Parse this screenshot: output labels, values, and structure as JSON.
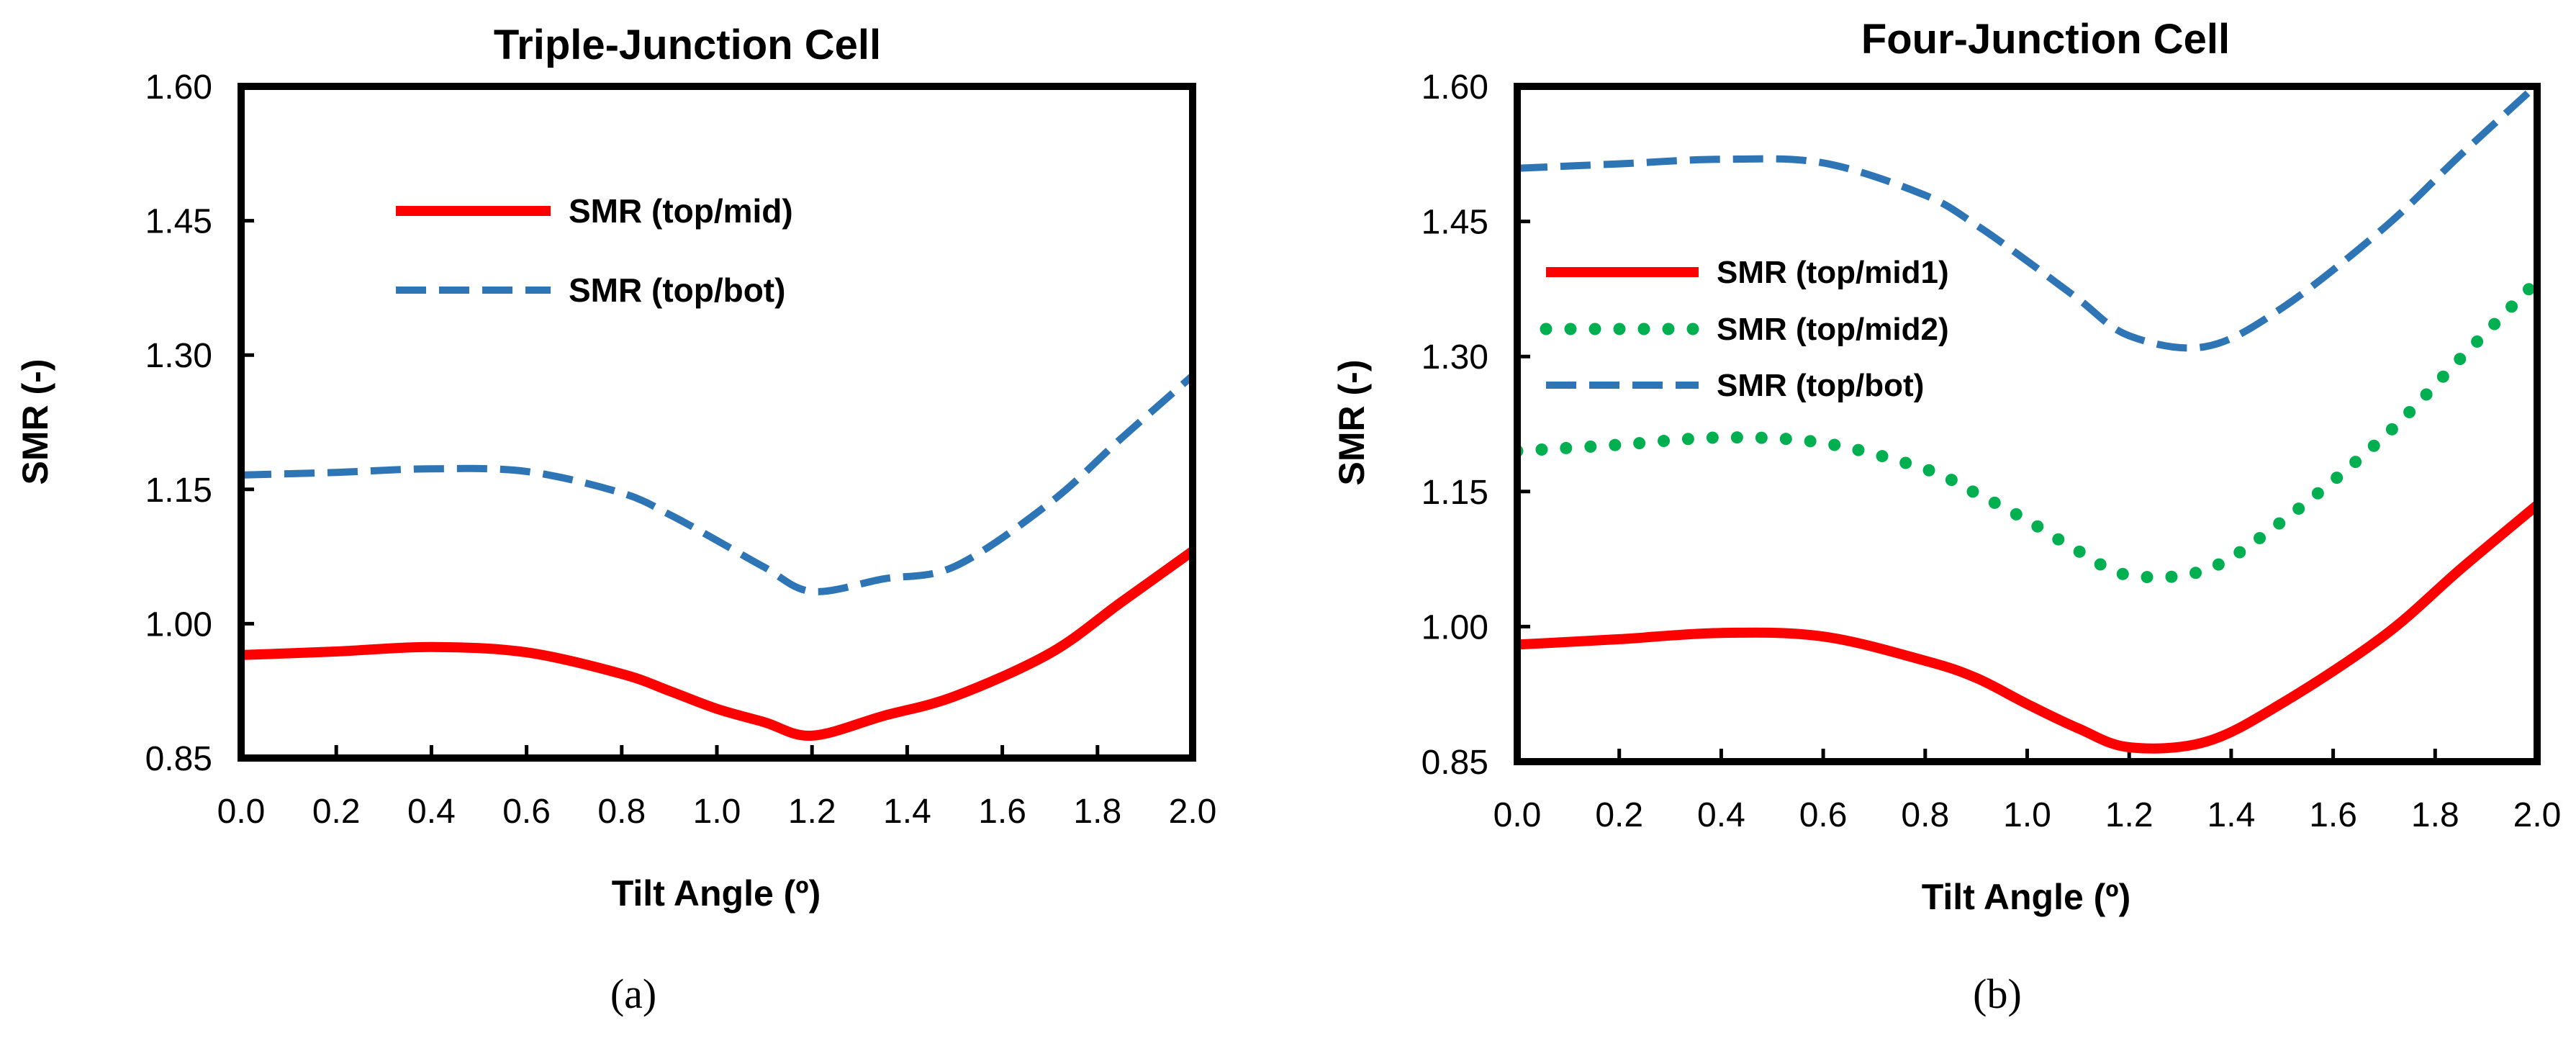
{
  "chart_data": [
    {
      "type": "line",
      "title": "Triple-Junction Cell",
      "xlabel": "Tilt Angle (º)",
      "ylabel": "SMR (-)",
      "caption": "(a)",
      "xlim": [
        0,
        2.0
      ],
      "ylim": [
        0.85,
        1.6
      ],
      "xticks": [
        "0.0",
        "0.2",
        "0.4",
        "0.6",
        "0.8",
        "1.0",
        "1.2",
        "1.4",
        "1.6",
        "1.8",
        "2.0"
      ],
      "yticks": [
        "0.85",
        "1.00",
        "1.15",
        "1.30",
        "1.45",
        "1.60"
      ],
      "series": [
        {
          "name": "SMR (top/mid)",
          "color": "#ff0000",
          "style": "solid",
          "x": [
            0.0,
            0.2,
            0.4,
            0.6,
            0.8,
            0.9,
            1.0,
            1.1,
            1.2,
            1.35,
            1.5,
            1.7,
            1.85,
            2.0
          ],
          "y": [
            0.965,
            0.969,
            0.974,
            0.968,
            0.944,
            0.925,
            0.905,
            0.89,
            0.875,
            0.897,
            0.919,
            0.967,
            1.024,
            1.081
          ]
        },
        {
          "name": "SMR (top/bot)",
          "color": "#2e75b6",
          "style": "dashed",
          "x": [
            0.0,
            0.2,
            0.4,
            0.6,
            0.8,
            0.9,
            1.0,
            1.1,
            1.2,
            1.35,
            1.5,
            1.7,
            1.85,
            2.0
          ],
          "y": [
            1.166,
            1.169,
            1.173,
            1.17,
            1.146,
            1.122,
            1.093,
            1.063,
            1.036,
            1.05,
            1.064,
            1.135,
            1.207,
            1.277
          ]
        }
      ]
    },
    {
      "type": "line",
      "title": "Four-Junction Cell",
      "xlabel": "Tilt Angle (º)",
      "ylabel": "SMR (-)",
      "caption": "(b)",
      "xlim": [
        0,
        2.0
      ],
      "ylim": [
        0.85,
        1.6
      ],
      "xticks": [
        "0.0",
        "0.2",
        "0.4",
        "0.6",
        "0.8",
        "1.0",
        "1.2",
        "1.4",
        "1.6",
        "1.8",
        "2.0"
      ],
      "yticks": [
        "0.85",
        "1.00",
        "1.15",
        "1.30",
        "1.45",
        "1.60"
      ],
      "series": [
        {
          "name": "SMR (top/mid1)",
          "color": "#ff0000",
          "style": "solid",
          "x": [
            0.0,
            0.2,
            0.4,
            0.6,
            0.8,
            0.9,
            1.0,
            1.1,
            1.2,
            1.35,
            1.5,
            1.7,
            1.85,
            2.0
          ],
          "y": [
            0.98,
            0.986,
            0.993,
            0.989,
            0.962,
            0.943,
            0.914,
            0.887,
            0.866,
            0.872,
            0.915,
            0.99,
            1.064,
            1.135
          ]
        },
        {
          "name": "SMR (top/mid2)",
          "color": "#00b050",
          "style": "dotted",
          "x": [
            0.0,
            0.2,
            0.4,
            0.6,
            0.8,
            0.9,
            1.0,
            1.1,
            1.2,
            1.35,
            1.5,
            1.7,
            1.85,
            2.0
          ],
          "y": [
            1.195,
            1.202,
            1.21,
            1.204,
            1.175,
            1.148,
            1.118,
            1.084,
            1.057,
            1.063,
            1.117,
            1.211,
            1.298,
            1.384
          ]
        },
        {
          "name": "SMR (top/bot)",
          "color": "#2e75b6",
          "style": "dashed",
          "x": [
            0.0,
            0.2,
            0.4,
            0.6,
            0.8,
            0.9,
            1.0,
            1.1,
            1.2,
            1.35,
            1.5,
            1.7,
            1.85,
            2.0
          ],
          "y": [
            1.509,
            1.514,
            1.519,
            1.515,
            1.479,
            1.446,
            1.406,
            1.364,
            1.323,
            1.311,
            1.354,
            1.443,
            1.524,
            1.602
          ]
        }
      ]
    }
  ]
}
